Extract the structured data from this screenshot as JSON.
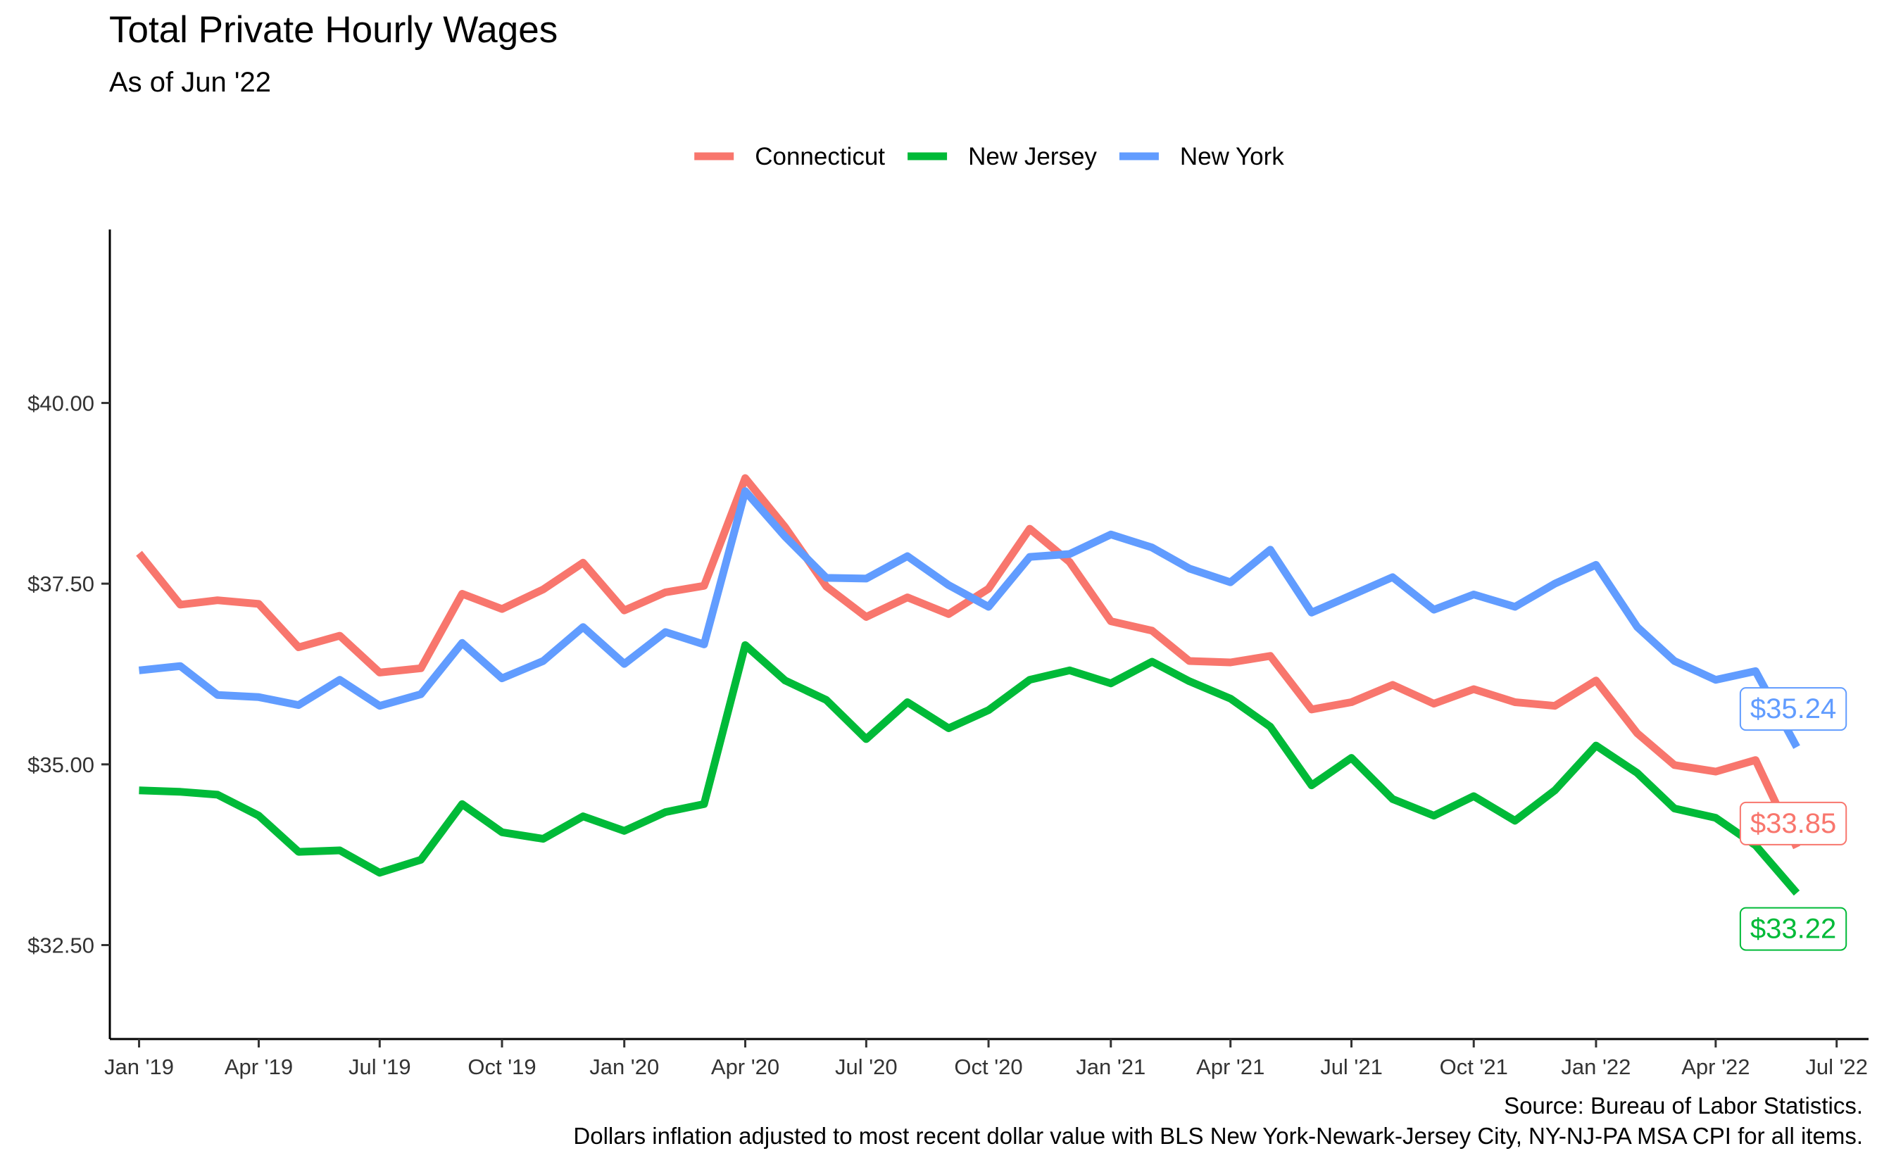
{
  "chart_data": {
    "type": "line",
    "title": "Total Private Hourly Wages",
    "subtitle": "As of Jun '22",
    "caption": [
      "Source: Bureau of Labor Statistics.",
      "Dollars inflation adjusted to most recent dollar value with BLS New York-Newark-Jersey City, NY-NJ-PA MSA CPI for all items."
    ],
    "legend_position": "top",
    "grid": false,
    "x": [
      "2019-01",
      "2019-02",
      "2019-03",
      "2019-04",
      "2019-05",
      "2019-06",
      "2019-07",
      "2019-08",
      "2019-09",
      "2019-10",
      "2019-11",
      "2019-12",
      "2020-01",
      "2020-02",
      "2020-03",
      "2020-04",
      "2020-05",
      "2020-06",
      "2020-07",
      "2020-08",
      "2020-09",
      "2020-10",
      "2020-11",
      "2020-12",
      "2021-01",
      "2021-02",
      "2021-03",
      "2021-04",
      "2021-05",
      "2021-06",
      "2021-07",
      "2021-08",
      "2021-09",
      "2021-10",
      "2021-11",
      "2021-12",
      "2022-01",
      "2022-02",
      "2022-03",
      "2022-04",
      "2022-05",
      "2022-06"
    ],
    "xlim": [
      "2018-12-10",
      "2022-07-25"
    ],
    "ylim": [
      31.2,
      42.4
    ],
    "x_ticks": [
      {
        "date": "2019-01",
        "label": "Jan '19"
      },
      {
        "date": "2019-04",
        "label": "Apr '19"
      },
      {
        "date": "2019-07",
        "label": "Jul '19"
      },
      {
        "date": "2019-10",
        "label": "Oct '19"
      },
      {
        "date": "2020-01",
        "label": "Jan '20"
      },
      {
        "date": "2020-04",
        "label": "Apr '20"
      },
      {
        "date": "2020-07",
        "label": "Jul '20"
      },
      {
        "date": "2020-10",
        "label": "Oct '20"
      },
      {
        "date": "2021-01",
        "label": "Jan '21"
      },
      {
        "date": "2021-04",
        "label": "Apr '21"
      },
      {
        "date": "2021-07",
        "label": "Jul '21"
      },
      {
        "date": "2021-10",
        "label": "Oct '21"
      },
      {
        "date": "2022-01",
        "label": "Jan '22"
      },
      {
        "date": "2022-04",
        "label": "Apr '22"
      },
      {
        "date": "2022-07",
        "label": "Jul '22"
      }
    ],
    "y_ticks": [
      {
        "value": 32.5,
        "label": "$32.50"
      },
      {
        "value": 35.0,
        "label": "$35.00"
      },
      {
        "value": 37.5,
        "label": "$37.50"
      },
      {
        "value": 40.0,
        "label": "$40.00"
      }
    ],
    "series": [
      {
        "name": "Connecticut",
        "color": "#F8766D",
        "values": [
          37.92,
          37.21,
          37.27,
          37.22,
          36.62,
          36.78,
          36.27,
          36.33,
          37.36,
          37.15,
          37.42,
          37.79,
          37.13,
          37.38,
          37.47,
          38.96,
          38.28,
          37.46,
          37.04,
          37.31,
          37.08,
          37.43,
          38.26,
          37.8,
          36.98,
          36.85,
          36.43,
          36.41,
          36.5,
          35.76,
          35.86,
          36.1,
          35.84,
          36.04,
          35.86,
          35.81,
          36.16,
          35.43,
          34.99,
          34.9,
          35.06,
          33.85
        ],
        "end_label": "$33.85"
      },
      {
        "name": "New Jersey",
        "color": "#00BA38",
        "values": [
          34.64,
          34.62,
          34.58,
          34.29,
          33.79,
          33.81,
          33.5,
          33.68,
          34.45,
          34.06,
          33.97,
          34.28,
          34.08,
          34.34,
          34.45,
          36.65,
          36.16,
          35.89,
          35.35,
          35.86,
          35.5,
          35.75,
          36.17,
          36.3,
          36.12,
          36.42,
          36.15,
          35.91,
          35.52,
          34.71,
          35.09,
          34.52,
          34.29,
          34.56,
          34.22,
          34.64,
          35.26,
          34.88,
          34.39,
          34.26,
          33.88,
          33.22
        ],
        "end_label": "$33.22"
      },
      {
        "name": "New York",
        "color": "#619CFF",
        "values": [
          36.3,
          36.36,
          35.96,
          35.93,
          35.82,
          36.17,
          35.81,
          35.97,
          36.68,
          36.19,
          36.43,
          36.9,
          36.39,
          36.83,
          36.66,
          38.78,
          38.15,
          37.58,
          37.57,
          37.88,
          37.48,
          37.18,
          37.87,
          37.91,
          38.18,
          38.0,
          37.71,
          37.52,
          37.97,
          37.1,
          37.34,
          37.59,
          37.14,
          37.35,
          37.18,
          37.5,
          37.76,
          36.9,
          36.43,
          36.17,
          36.29,
          35.24
        ],
        "end_label": "$35.24"
      }
    ]
  }
}
